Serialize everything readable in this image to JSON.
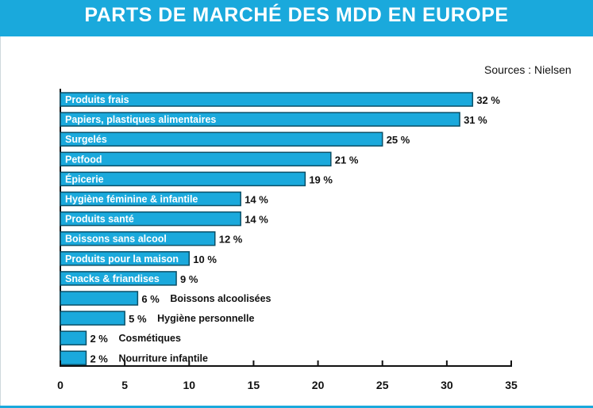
{
  "page": {
    "title": "PARTS DE MARCHÉ DES MDD EN EUROPE",
    "source": "Sources : Nielsen"
  },
  "colors": {
    "accent": "#1aa9dc",
    "bar": "#1aa9dc",
    "bar_border": "#0b4f66"
  },
  "chart_data": {
    "type": "bar",
    "orientation": "horizontal",
    "title": "PARTS DE MARCHÉ DES MDD EN EUROPE",
    "xlabel": "",
    "ylabel": "",
    "xlim": [
      0,
      35
    ],
    "xticks": [
      0,
      5,
      10,
      15,
      20,
      25,
      30,
      35
    ],
    "grid": false,
    "legend": "none",
    "value_suffix": " %",
    "categories": [
      "Produits frais",
      "Papiers, plastiques alimentaires",
      "Surgelés",
      "Petfood",
      "Épicerie",
      "Hygiène féminine & infantile",
      "Produits santé",
      "Boissons sans alcool",
      "Produits pour la maison",
      "Snacks & friandises",
      "Boissons alcoolisées",
      "Hygiène personnelle",
      "Cosmétiques",
      "Nourriture infantile"
    ],
    "values": [
      32,
      31,
      25,
      21,
      19,
      14,
      14,
      12,
      10,
      9,
      6,
      5,
      2,
      2
    ],
    "label_inside": [
      true,
      true,
      true,
      true,
      true,
      true,
      true,
      true,
      true,
      true,
      false,
      false,
      false,
      false
    ]
  }
}
